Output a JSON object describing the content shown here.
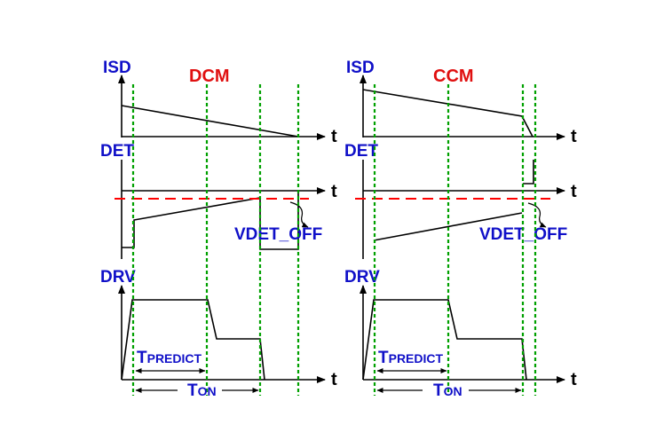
{
  "signals": {
    "isd": "ISD",
    "det": "DET",
    "drv": "DRV",
    "time_axis": "t"
  },
  "modes": [
    {
      "id": "dcm",
      "title": "DCM",
      "threshold_label": "VDET_OFF"
    },
    {
      "id": "ccm",
      "title": "CCM",
      "threshold_label": "VDET_OFF"
    }
  ],
  "timing": {
    "t_predict": {
      "main": "T",
      "sub": "PREDICT"
    },
    "t_on": {
      "main": "T",
      "sub": "ON"
    }
  },
  "colors": {
    "signal_labels": "#1010c8",
    "mode_titles": "#e01010",
    "threshold_line": "#ff0000",
    "timing_markers": "#00a000"
  }
}
